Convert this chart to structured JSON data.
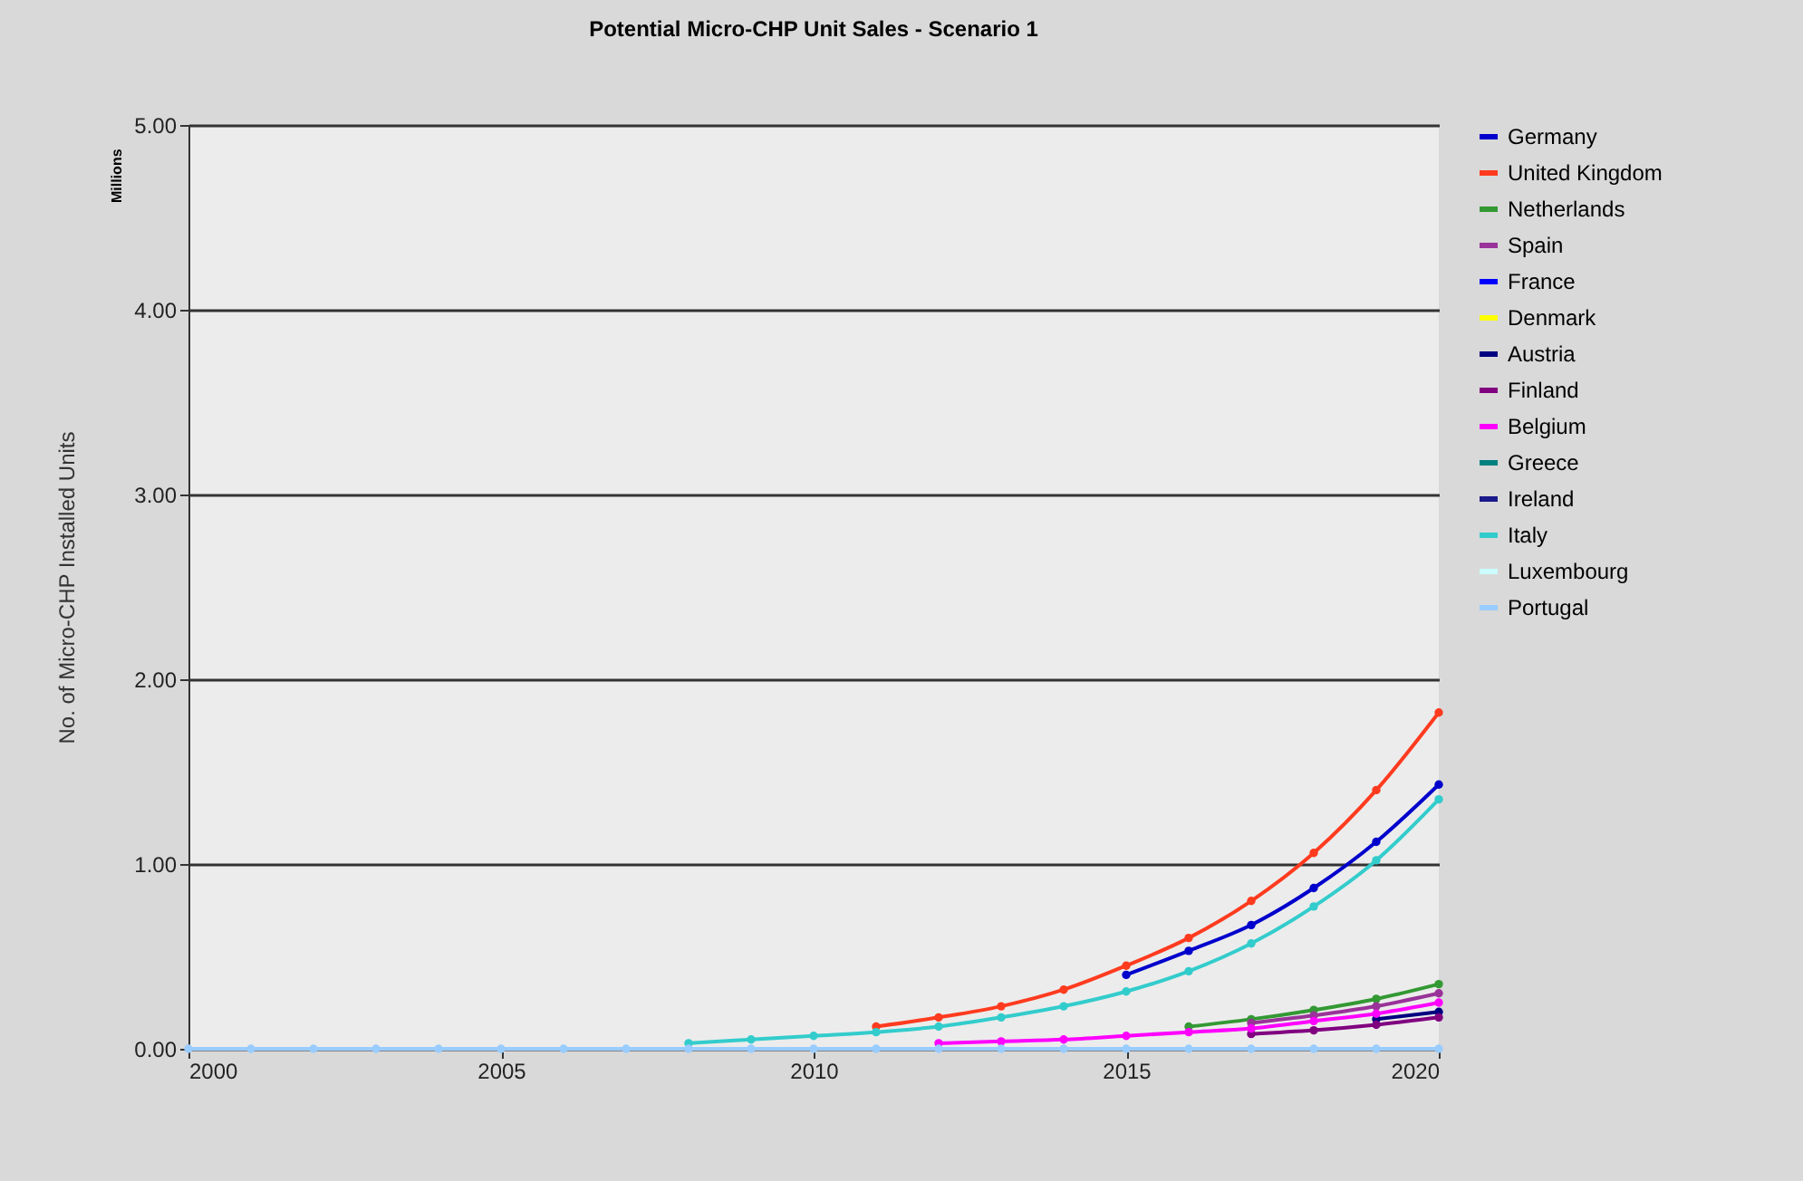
{
  "chart_data": {
    "type": "line",
    "title": "Potential Micro-CHP Unit Sales - Scenario 1",
    "ylabel": "No. of Micro-CHP Installed Units",
    "annotations": [
      "Millions"
    ],
    "x": [
      2000,
      2001,
      2002,
      2003,
      2004,
      2005,
      2006,
      2007,
      2008,
      2009,
      2010,
      2011,
      2012,
      2013,
      2014,
      2015,
      2016,
      2017,
      2018,
      2019,
      2020
    ],
    "xlim": [
      2000,
      2020
    ],
    "xticks": [
      2000,
      2005,
      2010,
      2015,
      2020
    ],
    "ylim": [
      0,
      5
    ],
    "yticks": [
      {
        "value": 0,
        "label": "0.00"
      },
      {
        "value": 1,
        "label": "1.00"
      },
      {
        "value": 2,
        "label": "2.00"
      },
      {
        "value": 3,
        "label": "3.00"
      },
      {
        "value": 4,
        "label": "4.00"
      },
      {
        "value": 5,
        "label": "5.00"
      }
    ],
    "grid": "y",
    "legend": "right",
    "marker": "circle",
    "series": [
      {
        "name": "Germany",
        "color": "#0000cc",
        "values": [
          null,
          null,
          null,
          null,
          null,
          null,
          null,
          null,
          null,
          null,
          null,
          null,
          null,
          null,
          null,
          0.4,
          0.53,
          0.67,
          0.87,
          1.12,
          1.43
        ]
      },
      {
        "name": "United Kingdom",
        "color": "#ff3b1f",
        "values": [
          null,
          null,
          null,
          null,
          null,
          null,
          null,
          null,
          null,
          null,
          null,
          0.12,
          0.17,
          0.23,
          0.32,
          0.45,
          0.6,
          0.8,
          1.06,
          1.4,
          1.82
        ]
      },
      {
        "name": "Netherlands",
        "color": "#339933",
        "values": [
          null,
          null,
          null,
          null,
          null,
          null,
          null,
          null,
          null,
          null,
          null,
          null,
          null,
          null,
          null,
          null,
          0.12,
          0.16,
          0.21,
          0.27,
          0.35
        ]
      },
      {
        "name": "Spain",
        "color": "#993399",
        "values": [
          null,
          null,
          null,
          null,
          null,
          null,
          null,
          null,
          null,
          null,
          null,
          null,
          null,
          null,
          null,
          null,
          null,
          0.14,
          0.18,
          0.23,
          0.3
        ]
      },
      {
        "name": "France",
        "color": "#0000ff",
        "values": [
          null,
          null,
          null,
          null,
          null,
          null,
          null,
          null,
          null,
          null,
          null,
          null,
          null,
          null,
          null,
          null,
          null,
          null,
          null,
          null,
          null
        ]
      },
      {
        "name": "Denmark",
        "color": "#ffff00",
        "values": [
          null,
          null,
          null,
          null,
          null,
          null,
          null,
          null,
          null,
          null,
          null,
          null,
          null,
          null,
          null,
          null,
          null,
          null,
          null,
          null,
          null
        ]
      },
      {
        "name": "Austria",
        "color": "#000080",
        "values": [
          null,
          null,
          null,
          null,
          null,
          null,
          null,
          null,
          null,
          null,
          null,
          null,
          null,
          null,
          null,
          null,
          null,
          null,
          null,
          0.16,
          0.2
        ]
      },
      {
        "name": "Finland",
        "color": "#800080",
        "values": [
          null,
          null,
          null,
          null,
          null,
          null,
          null,
          null,
          null,
          null,
          null,
          null,
          null,
          null,
          null,
          null,
          null,
          0.08,
          0.1,
          0.13,
          0.17
        ]
      },
      {
        "name": "Belgium",
        "color": "#ff00ff",
        "values": [
          null,
          null,
          null,
          null,
          null,
          null,
          null,
          null,
          null,
          null,
          null,
          null,
          0.03,
          0.04,
          0.05,
          0.07,
          0.09,
          0.11,
          0.15,
          0.19,
          0.25
        ]
      },
      {
        "name": "Greece",
        "color": "#008080",
        "values": [
          null,
          null,
          null,
          null,
          null,
          null,
          null,
          null,
          null,
          null,
          null,
          null,
          null,
          null,
          null,
          null,
          null,
          null,
          null,
          null,
          null
        ]
      },
      {
        "name": "Ireland",
        "color": "#1a1a8c",
        "values": [
          null,
          null,
          null,
          null,
          null,
          null,
          null,
          null,
          null,
          null,
          null,
          null,
          null,
          null,
          null,
          null,
          null,
          null,
          null,
          null,
          null
        ]
      },
      {
        "name": "Italy",
        "color": "#33cccc",
        "values": [
          null,
          null,
          null,
          null,
          null,
          null,
          null,
          null,
          0.03,
          0.05,
          0.07,
          0.09,
          0.12,
          0.17,
          0.23,
          0.31,
          0.42,
          0.57,
          0.77,
          1.02,
          1.35
        ]
      },
      {
        "name": "Luxembourg",
        "color": "#ccffff",
        "values": [
          null,
          null,
          null,
          null,
          null,
          null,
          null,
          null,
          null,
          null,
          null,
          null,
          null,
          null,
          null,
          null,
          null,
          null,
          null,
          null,
          null
        ]
      },
      {
        "name": "Portugal",
        "color": "#99ccff",
        "values": [
          0,
          0,
          0,
          0,
          0,
          0,
          0,
          0,
          0,
          0,
          0,
          0,
          0,
          0,
          0,
          0,
          0,
          0,
          0,
          0,
          0
        ]
      }
    ]
  }
}
